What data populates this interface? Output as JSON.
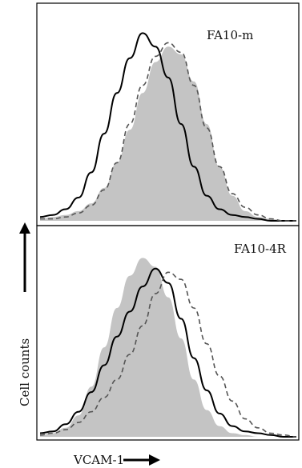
{
  "chart_data": [
    {
      "type": "area",
      "panel_label": "FA10-m",
      "xlabel": "VCAM-1",
      "ylabel": "Cell counts",
      "series": [
        {
          "style": "filled-gray",
          "color": "#c4c4c4",
          "x": [
            0,
            0.05,
            0.1,
            0.15,
            0.2,
            0.25,
            0.3,
            0.35,
            0.4,
            0.45,
            0.5,
            0.55,
            0.6,
            0.65,
            0.7,
            0.75,
            0.8,
            0.85,
            0.9,
            0.95,
            1
          ],
          "values": [
            0.01,
            0.02,
            0.03,
            0.05,
            0.09,
            0.17,
            0.3,
            0.47,
            0.66,
            0.82,
            0.9,
            0.86,
            0.72,
            0.5,
            0.28,
            0.13,
            0.05,
            0.02,
            0.01,
            0.0,
            0.0
          ]
        },
        {
          "style": "solid-black",
          "color": "#000000",
          "x": [
            0,
            0.05,
            0.1,
            0.15,
            0.2,
            0.25,
            0.3,
            0.35,
            0.4,
            0.45,
            0.5,
            0.55,
            0.6,
            0.65,
            0.7,
            0.75,
            0.8,
            0.85,
            0.9,
            0.95,
            1
          ],
          "values": [
            0.02,
            0.03,
            0.06,
            0.12,
            0.25,
            0.45,
            0.66,
            0.84,
            0.97,
            0.9,
            0.74,
            0.5,
            0.28,
            0.13,
            0.06,
            0.03,
            0.02,
            0.01,
            0.0,
            0.0,
            0.0
          ]
        },
        {
          "style": "dashed-gray",
          "color": "#555555",
          "x": [
            0,
            0.05,
            0.1,
            0.15,
            0.2,
            0.25,
            0.3,
            0.35,
            0.4,
            0.45,
            0.5,
            0.55,
            0.6,
            0.65,
            0.7,
            0.75,
            0.8,
            0.85,
            0.9,
            0.95,
            1
          ],
          "values": [
            0.01,
            0.01,
            0.02,
            0.04,
            0.08,
            0.16,
            0.3,
            0.5,
            0.7,
            0.85,
            0.92,
            0.87,
            0.7,
            0.48,
            0.28,
            0.14,
            0.07,
            0.03,
            0.01,
            0.0,
            0.0
          ]
        }
      ],
      "xlim": [
        0,
        1
      ],
      "ylim": [
        0,
        1.05
      ]
    },
    {
      "type": "area",
      "panel_label": "FA10-4R",
      "xlabel": "VCAM-1",
      "ylabel": "Cell counts",
      "series": [
        {
          "style": "filled-gray",
          "color": "#c4c4c4",
          "x": [
            0,
            0.05,
            0.1,
            0.15,
            0.2,
            0.25,
            0.3,
            0.35,
            0.4,
            0.45,
            0.5,
            0.55,
            0.6,
            0.65,
            0.7,
            0.75,
            0.8,
            0.85,
            0.9,
            0.95,
            1
          ],
          "values": [
            0.01,
            0.02,
            0.05,
            0.12,
            0.28,
            0.5,
            0.72,
            0.9,
            1.0,
            0.95,
            0.78,
            0.55,
            0.32,
            0.15,
            0.06,
            0.02,
            0.01,
            0.0,
            0.0,
            0.0,
            0.0
          ]
        },
        {
          "style": "solid-black",
          "color": "#000000",
          "x": [
            0,
            0.05,
            0.1,
            0.15,
            0.2,
            0.25,
            0.3,
            0.35,
            0.4,
            0.45,
            0.5,
            0.55,
            0.6,
            0.65,
            0.7,
            0.75,
            0.8,
            0.85,
            0.9,
            0.95,
            1
          ],
          "values": [
            0.02,
            0.03,
            0.07,
            0.14,
            0.25,
            0.4,
            0.56,
            0.7,
            0.84,
            0.94,
            0.86,
            0.66,
            0.44,
            0.26,
            0.13,
            0.06,
            0.03,
            0.02,
            0.01,
            0.0,
            0.0
          ]
        },
        {
          "style": "dashed-gray",
          "color": "#555555",
          "x": [
            0,
            0.05,
            0.1,
            0.15,
            0.2,
            0.25,
            0.3,
            0.35,
            0.4,
            0.45,
            0.5,
            0.55,
            0.6,
            0.65,
            0.7,
            0.75,
            0.8,
            0.85,
            0.9,
            0.95,
            1
          ],
          "values": [
            0.01,
            0.02,
            0.04,
            0.08,
            0.14,
            0.22,
            0.32,
            0.46,
            0.62,
            0.8,
            0.92,
            0.88,
            0.72,
            0.52,
            0.34,
            0.2,
            0.1,
            0.05,
            0.02,
            0.01,
            0.0
          ]
        }
      ],
      "xlim": [
        0,
        1
      ],
      "ylim": [
        0,
        1.1
      ]
    }
  ]
}
